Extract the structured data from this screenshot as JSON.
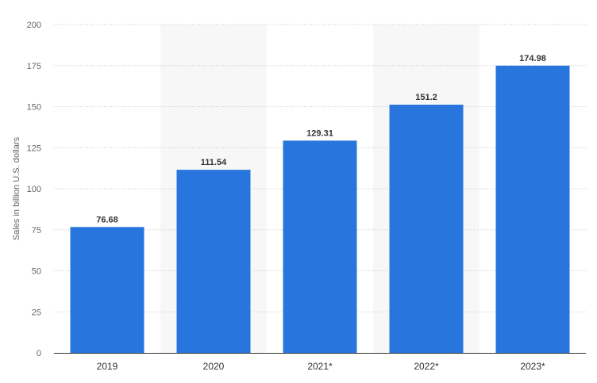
{
  "chart_data": {
    "type": "bar",
    "categories": [
      "2019",
      "2020",
      "2021*",
      "2022*",
      "2023*"
    ],
    "values": [
      76.68,
      111.54,
      129.31,
      151.2,
      174.98
    ],
    "value_labels": [
      "76.68",
      "111.54",
      "129.31",
      "151.2",
      "174.98"
    ],
    "title": "",
    "xlabel": "",
    "ylabel": "Sales in billion U.S. dollars",
    "ylim": [
      0,
      200
    ],
    "yticks": [
      0,
      25,
      50,
      75,
      100,
      125,
      150,
      175,
      200
    ],
    "ytick_labels": [
      "0",
      "25",
      "50",
      "75",
      "100",
      "125",
      "150",
      "175",
      "200"
    ],
    "grid": true,
    "grid_style": "dotted",
    "bar_color": "#2876dd",
    "alternating_band_color": "#f7f7f7",
    "legend": "none"
  }
}
